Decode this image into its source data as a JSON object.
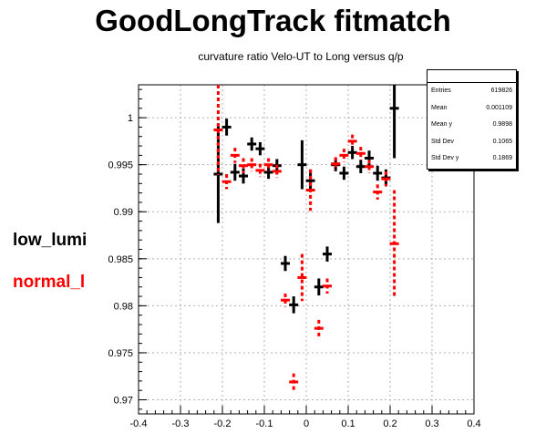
{
  "title": "GoodLongTrack fitmatch",
  "subtitle": "curvature ratio Velo-UT to Long versus q/p",
  "legend": {
    "low_lumi": "low_lumi",
    "normal": "normal_l"
  },
  "stats": {
    "header": "",
    "rows": [
      {
        "key": "Entries",
        "value": "619826"
      },
      {
        "key": "Mean",
        "value": "0.001109"
      },
      {
        "key": "Mean y",
        "value": "0.9898"
      },
      {
        "key": "Std Dev",
        "value": "0.1065"
      },
      {
        "key": "Std Dev y",
        "value": "0.1869"
      }
    ]
  },
  "colors": {
    "low_lumi": "#000000",
    "normal": "#ff0000",
    "grid": "#b0b0b0"
  },
  "chart_data": {
    "type": "scatter",
    "xlim": [
      -0.4,
      0.4
    ],
    "ylim": [
      0.9685,
      1.0035
    ],
    "xticks": [
      -0.4,
      -0.3,
      -0.2,
      -0.1,
      0,
      0.1,
      0.2,
      0.3,
      0.4
    ],
    "xtick_labels": [
      "-0.4",
      "-0.3",
      "-0.2",
      "-0.1",
      "0",
      "0.1",
      "0.2",
      "0.3",
      "0.4"
    ],
    "yticks": [
      0.97,
      0.975,
      0.98,
      0.985,
      0.99,
      0.995,
      1.0
    ],
    "ytick_labels": [
      "0.97",
      "0.975",
      "0.98",
      "0.985",
      "0.99",
      "0.995",
      "1"
    ],
    "grid": true,
    "series": [
      {
        "name": "low_lumi",
        "color": "#000000",
        "style": "solid",
        "points": [
          {
            "x": -0.21,
            "y": 0.994,
            "yerr": 0.0052
          },
          {
            "x": -0.19,
            "y": 0.999,
            "yerr": 0.0009
          },
          {
            "x": -0.17,
            "y": 0.9942,
            "yerr": 0.0009
          },
          {
            "x": -0.15,
            "y": 0.9938,
            "yerr": 0.0008
          },
          {
            "x": -0.13,
            "y": 0.9972,
            "yerr": 0.0007
          },
          {
            "x": -0.11,
            "y": 0.9967,
            "yerr": 0.0007
          },
          {
            "x": -0.09,
            "y": 0.9942,
            "yerr": 0.0007
          },
          {
            "x": -0.07,
            "y": 0.9949,
            "yerr": 0.0007
          },
          {
            "x": -0.05,
            "y": 0.9845,
            "yerr": 0.0008
          },
          {
            "x": -0.03,
            "y": 0.9801,
            "yerr": 0.0009
          },
          {
            "x": -0.01,
            "y": 0.995,
            "yerr": 0.0026
          },
          {
            "x": 0.01,
            "y": 0.9933,
            "yerr": 0.0012
          },
          {
            "x": 0.03,
            "y": 0.982,
            "yerr": 0.0009
          },
          {
            "x": 0.05,
            "y": 0.9855,
            "yerr": 0.0008
          },
          {
            "x": 0.07,
            "y": 0.995,
            "yerr": 0.0007
          },
          {
            "x": 0.09,
            "y": 0.9941,
            "yerr": 0.0007
          },
          {
            "x": 0.11,
            "y": 0.9963,
            "yerr": 0.0007
          },
          {
            "x": 0.13,
            "y": 0.9948,
            "yerr": 0.0007
          },
          {
            "x": 0.15,
            "y": 0.9957,
            "yerr": 0.0008
          },
          {
            "x": 0.17,
            "y": 0.9941,
            "yerr": 0.0008
          },
          {
            "x": 0.19,
            "y": 0.9936,
            "yerr": 0.0009
          },
          {
            "x": 0.21,
            "y": 1.001,
            "yerr": 0.0053
          }
        ]
      },
      {
        "name": "normal_l",
        "color": "#ff0000",
        "style": "dashed",
        "points": [
          {
            "x": -0.21,
            "y": 0.9987,
            "yerr": 0.0048
          },
          {
            "x": -0.19,
            "y": 0.9932,
            "yerr": 0.0008
          },
          {
            "x": -0.17,
            "y": 0.996,
            "yerr": 0.0008
          },
          {
            "x": -0.15,
            "y": 0.9949,
            "yerr": 0.0008
          },
          {
            "x": -0.13,
            "y": 0.995,
            "yerr": 0.0007
          },
          {
            "x": -0.11,
            "y": 0.9944,
            "yerr": 0.0007
          },
          {
            "x": -0.09,
            "y": 0.995,
            "yerr": 0.0007
          },
          {
            "x": -0.07,
            "y": 0.9943,
            "yerr": 0.0007
          },
          {
            "x": -0.05,
            "y": 0.9806,
            "yerr": 0.0007
          },
          {
            "x": -0.03,
            "y": 0.9719,
            "yerr": 0.0009
          },
          {
            "x": -0.01,
            "y": 0.983,
            "yerr": 0.0025
          },
          {
            "x": 0.01,
            "y": 0.9923,
            "yerr": 0.0022
          },
          {
            "x": 0.03,
            "y": 0.9776,
            "yerr": 0.0009
          },
          {
            "x": 0.05,
            "y": 0.9821,
            "yerr": 0.0008
          },
          {
            "x": 0.07,
            "y": 0.9951,
            "yerr": 0.0007
          },
          {
            "x": 0.09,
            "y": 0.996,
            "yerr": 0.0007
          },
          {
            "x": 0.11,
            "y": 0.9975,
            "yerr": 0.0007
          },
          {
            "x": 0.13,
            "y": 0.9962,
            "yerr": 0.0007
          },
          {
            "x": 0.15,
            "y": 0.9948,
            "yerr": 0.0007
          },
          {
            "x": 0.17,
            "y": 0.9921,
            "yerr": 0.0008
          },
          {
            "x": 0.19,
            "y": 0.9935,
            "yerr": 0.0008
          },
          {
            "x": 0.21,
            "y": 0.9866,
            "yerr": 0.0057
          }
        ]
      }
    ]
  }
}
